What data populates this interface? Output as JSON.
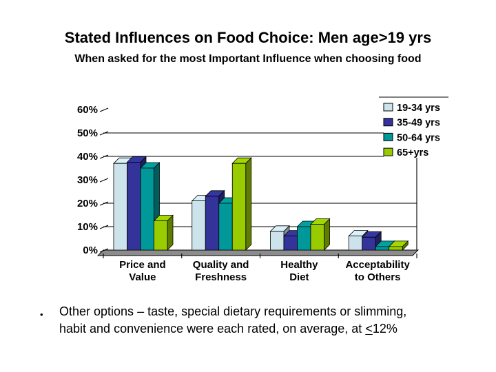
{
  "slide": {
    "title": "Stated Influences on Food Choice: Men age>19 yrs",
    "subtitle": "When asked for the most Important Influence when choosing food"
  },
  "chart_data": {
    "type": "bar",
    "style": "3d-clustered-column",
    "categories": [
      {
        "label": "Price and Value",
        "lines": [
          "Price and",
          "Value"
        ]
      },
      {
        "label": "Quality and Freshness",
        "lines": [
          "Quality and",
          "Freshness"
        ]
      },
      {
        "label": "Healthy Diet",
        "lines": [
          "Healthy",
          "Diet"
        ]
      },
      {
        "label": "Acceptability to Others",
        "lines": [
          "Acceptability",
          "to Others"
        ]
      }
    ],
    "series": [
      {
        "name": "19-34 yrs",
        "color": "#cde3eb",
        "values": [
          37,
          21,
          8,
          6
        ]
      },
      {
        "name": "35-49 yrs",
        "color": "#333399",
        "values": [
          37.5,
          23,
          6,
          5.5
        ]
      },
      {
        "name": "50-64 yrs",
        "color": "#009898",
        "values": [
          35,
          20,
          10,
          1.5
        ]
      },
      {
        "name": "65+yrs",
        "color": "#99cc00",
        "values": [
          12.5,
          37,
          11,
          1.5
        ]
      }
    ],
    "y_axis": {
      "unit": "percent",
      "min": 0,
      "max": 60,
      "tick_labels": [
        "0%",
        "10%",
        "20%",
        "30%",
        "40%",
        "50%",
        "60%"
      ],
      "gridlines_pct": [
        10,
        20,
        40,
        50
      ]
    },
    "legend": {
      "position": "top-right",
      "items": [
        "19-34 yrs",
        "35-49 yrs",
        "50-64 yrs",
        "65+yrs"
      ]
    },
    "floor_color": "#8c8c8c",
    "grid_color": "#000000"
  },
  "bullet": {
    "marker": "•",
    "line1": "Other options – taste, special dietary requirements or slimming,",
    "line2_before": "habit and convenience  were each rated, on average, at ",
    "line2_lte": "<",
    "line2_after": "12%"
  }
}
